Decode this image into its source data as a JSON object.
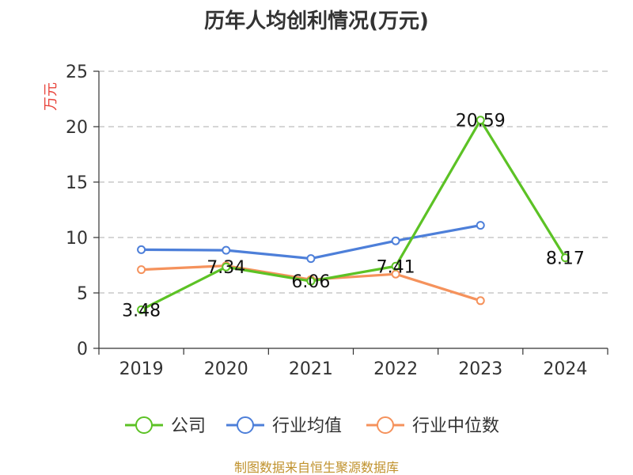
{
  "chart_data": {
    "type": "line",
    "title": "历年人均创利情况(万元)",
    "ylabel": "万元",
    "ylim": [
      0,
      25
    ],
    "yticks": [
      0,
      5,
      10,
      15,
      20,
      25
    ],
    "categories": [
      "2019",
      "2020",
      "2021",
      "2022",
      "2023",
      "2024"
    ],
    "grid": true,
    "legend_position": "bottom",
    "series": [
      {
        "name": "公司",
        "color": "#5cc225",
        "values": [
          3.48,
          7.34,
          6.06,
          7.41,
          20.59,
          8.17
        ],
        "labels": [
          "3.48",
          "7.34",
          "6.06",
          "7.41",
          "20.59",
          "8.17"
        ]
      },
      {
        "name": "行业均值",
        "color": "#4d7fd9",
        "values": [
          8.9,
          8.85,
          8.1,
          9.7,
          11.1,
          null
        ]
      },
      {
        "name": "行业中位数",
        "color": "#f5925c",
        "values": [
          7.1,
          7.45,
          6.2,
          6.7,
          4.3,
          null
        ]
      }
    ],
    "source": "制图数据来自恒生聚源数据库"
  }
}
